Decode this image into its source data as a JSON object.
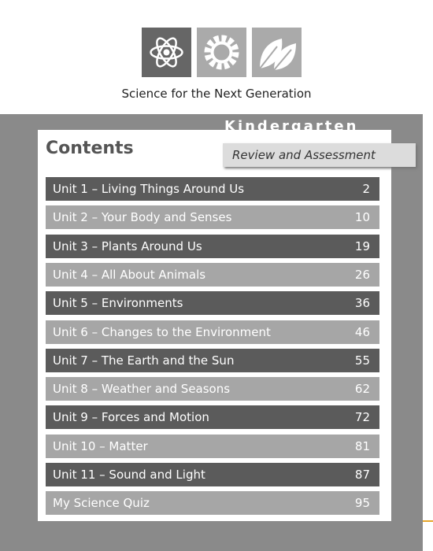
{
  "header": {
    "title": "Science for the Next Generation",
    "grade": "Kindergarten",
    "subtitle": "Review and Assessment"
  },
  "contents": {
    "title": "Contents",
    "rows": [
      {
        "label": "Unit 1 – Living Things Around Us",
        "page": 2
      },
      {
        "label": "Unit 2 – Your Body and Senses",
        "page": 10
      },
      {
        "label": "Unit 3 – Plants Around Us",
        "page": 19
      },
      {
        "label": "Unit 4 – All About Animals",
        "page": 26
      },
      {
        "label": "Unit 5 – Environments",
        "page": 36
      },
      {
        "label": "Unit 6 – Changes to the Environment",
        "page": 46
      },
      {
        "label": "Unit 7 – The Earth and the Sun",
        "page": 55
      },
      {
        "label": "Unit 8 – Weather and Seasons",
        "page": 62
      },
      {
        "label": "Unit 9 – Forces and Motion",
        "page": 72
      },
      {
        "label": "Unit 10 – Matter",
        "page": 81
      },
      {
        "label": "Unit 11 – Sound and Light",
        "page": 87
      },
      {
        "label": "My Science Quiz",
        "page": 95
      }
    ]
  }
}
